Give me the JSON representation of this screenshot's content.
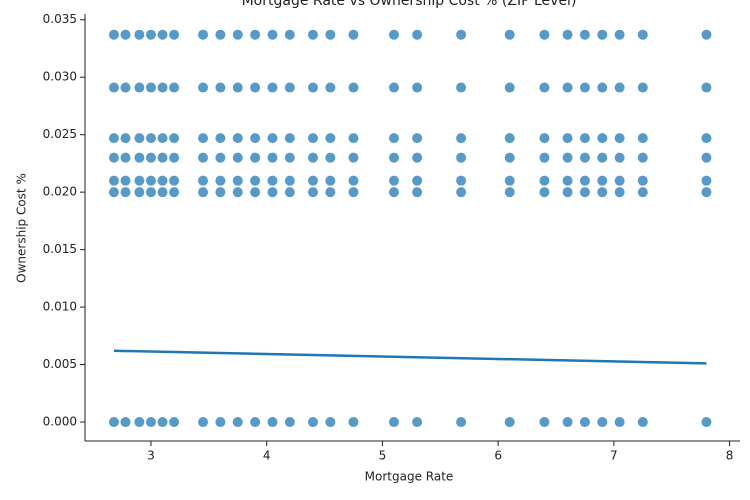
{
  "chart_data": {
    "type": "scatter",
    "title": "Mortgage Rate vs Ownership Cost % (ZIP Level)",
    "x_label": "Mortgage Rate",
    "y_label": "Ownership Cost %",
    "color": "#1f77b4",
    "xlim": [
      2.43,
      8.09
    ],
    "ylim": [
      -0.00165,
      0.0355
    ],
    "xticks": [
      3,
      4,
      5,
      6,
      7,
      8
    ],
    "yticks": [
      {
        "value": 0,
        "label": "0.000"
      },
      {
        "value": 0.005,
        "label": "0.005"
      },
      {
        "value": 0.01,
        "label": "0.010"
      },
      {
        "value": 0.015,
        "label": "0.015"
      },
      {
        "value": 0.02,
        "label": "0.020"
      },
      {
        "value": 0.025,
        "label": "0.025"
      },
      {
        "value": 0.03,
        "label": "0.030"
      },
      {
        "value": 0.035,
        "label": "0.035"
      }
    ],
    "x": [
      2.68,
      2.78,
      2.9,
      3.0,
      3.1,
      3.2,
      3.45,
      3.6,
      3.75,
      3.9,
      4.05,
      4.2,
      4.4,
      4.55,
      4.75,
      5.1,
      5.3,
      5.68,
      6.1,
      6.4,
      6.6,
      6.75,
      6.9,
      7.05,
      7.25,
      7.8,
      2.68,
      2.78,
      2.9,
      3.0,
      3.1,
      3.2,
      3.45,
      3.6,
      3.75,
      3.9,
      4.05,
      4.2,
      4.4,
      4.55,
      4.75,
      5.1,
      5.3,
      5.68,
      6.1,
      6.4,
      6.6,
      6.75,
      6.9,
      7.05,
      7.25,
      7.8,
      2.68,
      2.78,
      2.9,
      3.0,
      3.1,
      3.2,
      3.45,
      3.6,
      3.75,
      3.9,
      4.05,
      4.2,
      4.4,
      4.55,
      4.75,
      5.1,
      5.3,
      5.68,
      6.1,
      6.4,
      6.6,
      6.75,
      6.9,
      7.05,
      7.25,
      7.8,
      2.68,
      2.78,
      2.9,
      3.0,
      3.1,
      3.2,
      3.45,
      3.6,
      3.75,
      3.9,
      4.05,
      4.2,
      4.4,
      4.55,
      4.75,
      5.1,
      5.3,
      5.68,
      6.1,
      6.4,
      6.6,
      6.75,
      6.9,
      7.05,
      7.25,
      7.8,
      2.68,
      2.78,
      2.9,
      3.0,
      3.1,
      3.2,
      3.45,
      3.6,
      3.75,
      3.9,
      4.05,
      4.2,
      4.4,
      4.55,
      4.75,
      5.1,
      5.3,
      5.68,
      6.1,
      6.4,
      6.6,
      6.75,
      6.9,
      7.05,
      7.25,
      7.8,
      2.68,
      2.78,
      2.9,
      3.0,
      3.1,
      3.2,
      3.45,
      3.6,
      3.75,
      3.9,
      4.05,
      4.2,
      4.4,
      4.55,
      4.75,
      5.1,
      5.3,
      5.68,
      6.1,
      6.4,
      6.6,
      6.75,
      6.9,
      7.05,
      7.25,
      7.8,
      2.68,
      2.78,
      2.9,
      3.0,
      3.1,
      3.2,
      3.45,
      3.6,
      3.75,
      3.9,
      4.05,
      4.2,
      4.4,
      4.55,
      4.75,
      5.1,
      5.3,
      5.68,
      6.1,
      6.4,
      6.6,
      6.75,
      6.9,
      7.05,
      7.25,
      7.8
    ],
    "y": [
      0,
      0,
      0,
      0,
      0,
      0,
      0,
      0,
      0,
      0,
      0,
      0,
      0,
      0,
      0,
      0,
      0,
      0,
      0,
      0,
      0,
      0,
      0,
      0,
      0,
      0,
      0.02,
      0.02,
      0.02,
      0.02,
      0.02,
      0.02,
      0.02,
      0.02,
      0.02,
      0.02,
      0.02,
      0.02,
      0.02,
      0.02,
      0.02,
      0.02,
      0.02,
      0.02,
      0.02,
      0.02,
      0.02,
      0.02,
      0.02,
      0.02,
      0.02,
      0.02,
      0.021,
      0.021,
      0.021,
      0.021,
      0.021,
      0.021,
      0.021,
      0.021,
      0.021,
      0.021,
      0.021,
      0.021,
      0.021,
      0.021,
      0.021,
      0.021,
      0.021,
      0.021,
      0.021,
      0.021,
      0.021,
      0.021,
      0.021,
      0.021,
      0.021,
      0.021,
      0.023,
      0.023,
      0.023,
      0.023,
      0.023,
      0.023,
      0.023,
      0.023,
      0.023,
      0.023,
      0.023,
      0.023,
      0.023,
      0.023,
      0.023,
      0.023,
      0.023,
      0.023,
      0.023,
      0.023,
      0.023,
      0.023,
      0.023,
      0.023,
      0.023,
      0.023,
      0.0247,
      0.0247,
      0.0247,
      0.0247,
      0.0247,
      0.0247,
      0.0247,
      0.0247,
      0.0247,
      0.0247,
      0.0247,
      0.0247,
      0.0247,
      0.0247,
      0.0247,
      0.0247,
      0.0247,
      0.0247,
      0.0247,
      0.0247,
      0.0247,
      0.0247,
      0.0247,
      0.0247,
      0.0247,
      0.0247,
      0.0291,
      0.0291,
      0.0291,
      0.0291,
      0.0291,
      0.0291,
      0.0291,
      0.0291,
      0.0291,
      0.0291,
      0.0291,
      0.0291,
      0.0291,
      0.0291,
      0.0291,
      0.0291,
      0.0291,
      0.0291,
      0.0291,
      0.0291,
      0.0291,
      0.0291,
      0.0291,
      0.0291,
      0.0291,
      0.0291,
      0.0337,
      0.0337,
      0.0337,
      0.0337,
      0.0337,
      0.0337,
      0.0337,
      0.0337,
      0.0337,
      0.0337,
      0.0337,
      0.0337,
      0.0337,
      0.0337,
      0.0337,
      0.0337,
      0.0337,
      0.0337,
      0.0337,
      0.0337,
      0.0337,
      0.0337,
      0.0337,
      0.0337,
      0.0337,
      0.0337
    ],
    "trend": {
      "x": [
        2.68,
        7.8
      ],
      "y": [
        0.0062,
        0.0051
      ]
    }
  }
}
